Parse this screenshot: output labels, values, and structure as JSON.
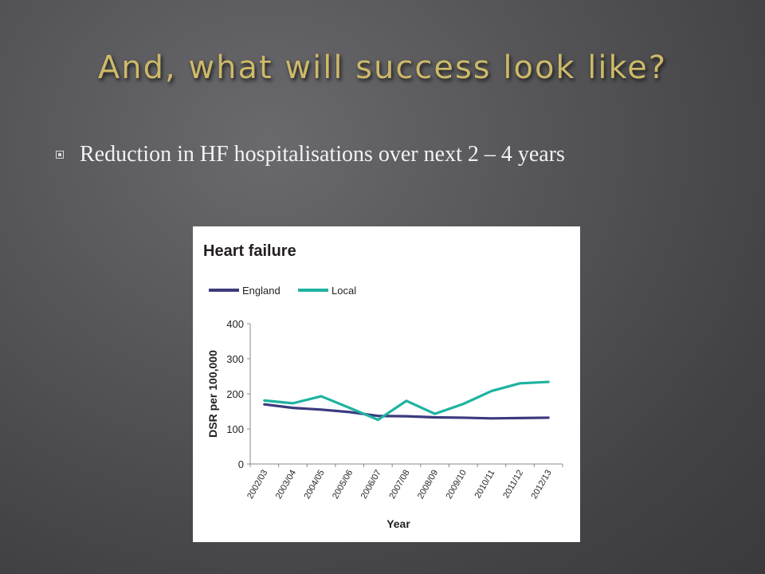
{
  "slide": {
    "title": "And, what will success look like?",
    "bullet_text": "Reduction in HF hospitalisations over next 2 – 4 years",
    "bullet_icon": "square-bullet-icon"
  },
  "colors": {
    "title": "#cdb96a",
    "england": "#3b3a7e",
    "local": "#1eb3a0",
    "axis": "#888888"
  },
  "chart_data": {
    "type": "line",
    "title": "Heart failure",
    "xlabel": "Year",
    "ylabel": "DSR per 100,000",
    "legend_position": "top-left",
    "grid": false,
    "categories": [
      "2002/03",
      "2003/04",
      "2004/05",
      "2005/06",
      "2006/07",
      "2007/08",
      "2008/09",
      "2009/10",
      "2010/11",
      "2011/12",
      "2012/13"
    ],
    "yticks": [
      0,
      100,
      200,
      300,
      400
    ],
    "ylim": [
      0,
      400
    ],
    "series": [
      {
        "name": "England",
        "color": "#3b3a7e",
        "values": [
          170,
          160,
          155,
          148,
          137,
          136,
          133,
          132,
          130,
          131,
          132
        ]
      },
      {
        "name": "Local",
        "color": "#1eb3a0",
        "values": [
          181,
          173,
          193,
          160,
          126,
          180,
          143,
          171,
          208,
          230,
          234
        ]
      }
    ]
  }
}
